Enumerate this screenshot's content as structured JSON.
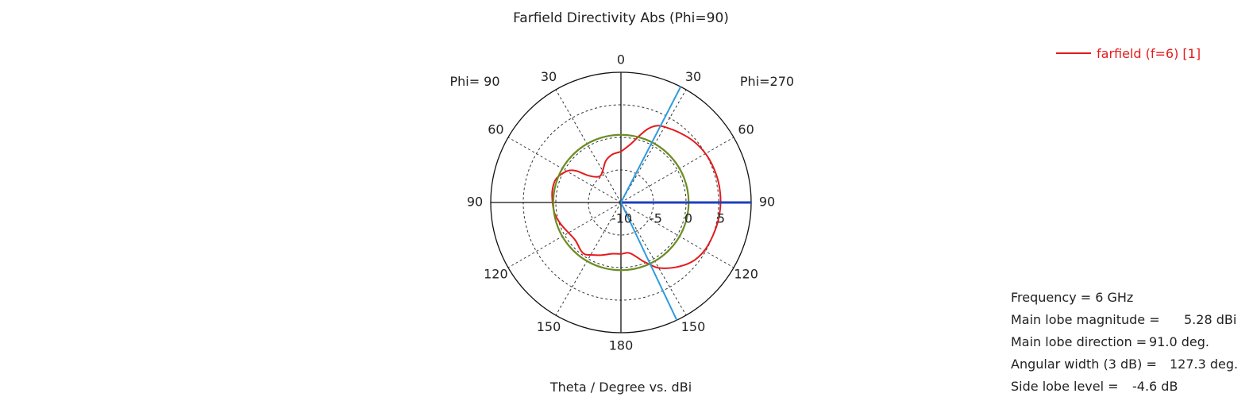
{
  "chart_data": {
    "type": "polar-line",
    "title": "Farfield Directivity Abs (Phi=90)",
    "xlabel": "Theta / Degree vs. dBi",
    "side_labels": {
      "left": "Phi= 90",
      "right": "Phi=270"
    },
    "angle_labels_left": [
      "30",
      "60",
      "90",
      "120",
      "150"
    ],
    "angle_labels_right": [
      "30",
      "60",
      "90",
      "120",
      "150"
    ],
    "angle_label_top": "0",
    "angle_label_bottom": "180",
    "radial_ticks": [
      "-10",
      "-5",
      "0",
      "5"
    ],
    "radial_range_dBi": [
      -10,
      10
    ],
    "grid": true,
    "legend_position": "top-right",
    "series": [
      {
        "name": "farfield (f=6) [1]",
        "color": "#e41a1c",
        "theta_deg": [
          0,
          10,
          15,
          20,
          25,
          30,
          40,
          50,
          60,
          70,
          80,
          90,
          100,
          110,
          120,
          130,
          140,
          150,
          155,
          160,
          170,
          180,
          190,
          200,
          210,
          215,
          220,
          230,
          240,
          250,
          260,
          270,
          280,
          290,
          300,
          305,
          310,
          320,
          330,
          340,
          350,
          360
        ],
        "gain_dBi": [
          -2.2,
          -0.8,
          0.5,
          2.0,
          3.0,
          3.4,
          4.0,
          4.6,
          5.0,
          5.2,
          5.3,
          5.3,
          5.2,
          5.0,
          4.8,
          4.2,
          3.0,
          1.6,
          0.5,
          -0.5,
          -2.1,
          -2.1,
          -2.0,
          -1.4,
          -0.7,
          -0.3,
          -0.4,
          -0.9,
          -0.7,
          -0.2,
          0.3,
          0.5,
          0.7,
          0.6,
          -0.4,
          -1.5,
          -3.6,
          -4.8,
          -4.4,
          -3.2,
          -2.5,
          -2.2
        ]
      },
      {
        "name": "",
        "color": "#6b8e23",
        "constant_dBi": 0.4
      }
    ],
    "markers": [
      {
        "name": "main-lobe-direction",
        "theta_deg": 91.0,
        "color": "#1f3fbf"
      },
      {
        "name": "beamwidth-edge-1",
        "theta_deg": 27.3,
        "color": "#2f9be0"
      },
      {
        "name": "beamwidth-edge-2",
        "theta_deg": 154.6,
        "color": "#2f9be0"
      }
    ]
  },
  "info": {
    "frequency": {
      "label": "Frequency = 6 GHz",
      "value": ""
    },
    "magnitude": {
      "label": "Main lobe magnitude =",
      "value": "5.28 dBi"
    },
    "direction": {
      "label": "Main lobe direction =",
      "value": "91.0 deg."
    },
    "width": {
      "label": "Angular width (3 dB) =",
      "value": "127.3 deg."
    },
    "sidelobe": {
      "label": "Side lobe level =",
      "value": "-4.6 dB"
    }
  }
}
